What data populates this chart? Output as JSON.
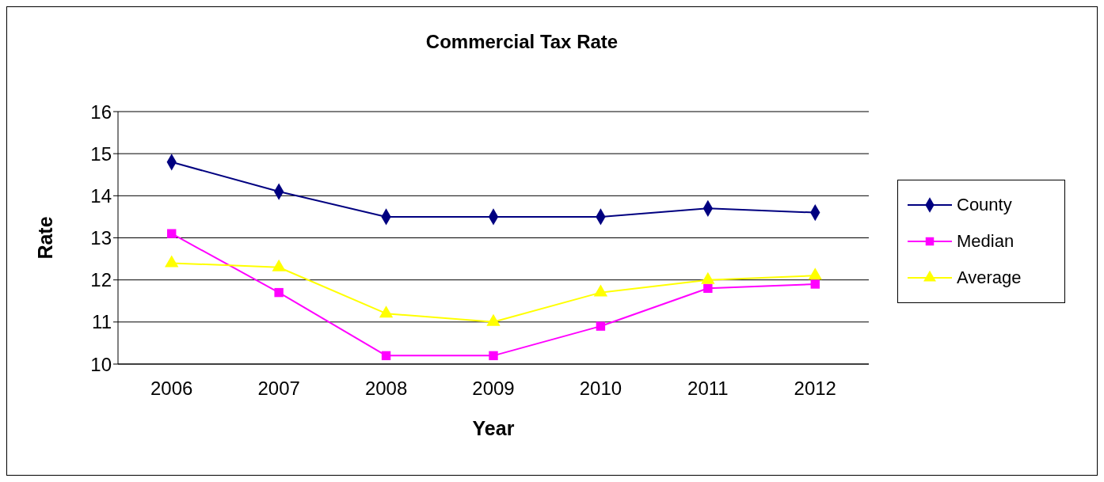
{
  "chart_data": {
    "type": "line",
    "title": "Commercial Tax Rate",
    "xlabel": "Year",
    "ylabel": "Rate",
    "categories": [
      "2006",
      "2007",
      "2008",
      "2009",
      "2010",
      "2011",
      "2012"
    ],
    "series": [
      {
        "name": "County",
        "color": "#000080",
        "marker": "diamond",
        "values": [
          14.8,
          14.1,
          13.5,
          13.5,
          13.5,
          13.7,
          13.6
        ]
      },
      {
        "name": "Median",
        "color": "#ff00ff",
        "marker": "square",
        "values": [
          13.1,
          11.7,
          10.2,
          10.2,
          10.9,
          11.8,
          11.9
        ]
      },
      {
        "name": "Average",
        "color": "#ffff00",
        "marker": "triangle",
        "values": [
          12.4,
          12.3,
          11.2,
          11.0,
          11.7,
          12.0,
          12.1
        ]
      }
    ],
    "ylim": [
      10,
      16
    ],
    "yticks": [
      10,
      11,
      12,
      13,
      14,
      15,
      16
    ],
    "grid": "y",
    "legend": "right",
    "line_style": "solid"
  }
}
